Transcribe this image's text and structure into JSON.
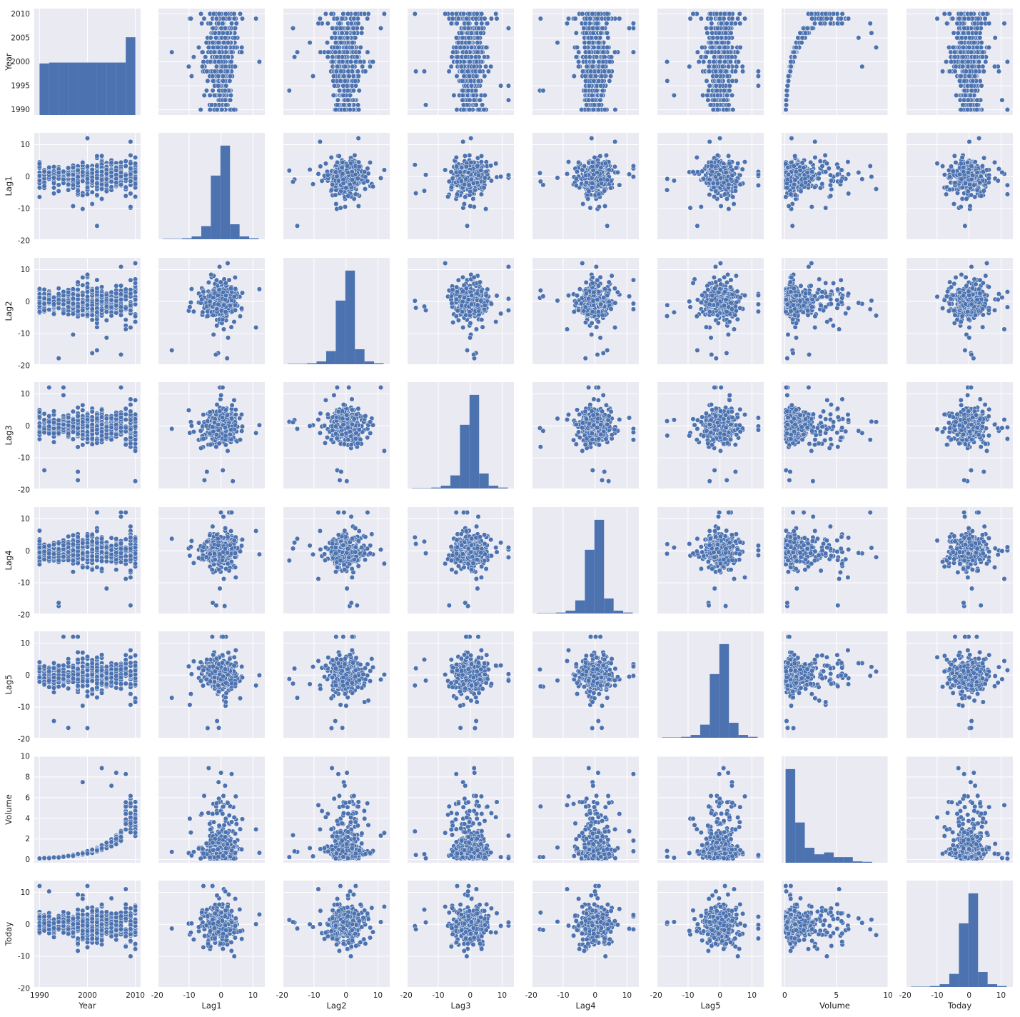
{
  "chart_data": {
    "type": "scatter",
    "subtype": "pairplot",
    "style": {
      "panel_background": "#EAEAF2",
      "grid_color": "#FFFFFF",
      "marker_color": "#4C72B0",
      "marker_edge": "#FFFFFF",
      "grid": true
    },
    "variables": [
      {
        "name": "Year",
        "label": "Year",
        "range": [
          1988.9,
          2011.1
        ],
        "ticks": [
          1990,
          1995,
          2000,
          2005,
          2010
        ],
        "x_ticks": [
          1990,
          2000,
          2010
        ],
        "kind": "year"
      },
      {
        "name": "Lag1",
        "label": "Lag1",
        "range": [
          -19.6,
          13.7
        ],
        "ticks": [
          -20,
          -10,
          0,
          10
        ],
        "x_ticks": [
          -20,
          -10,
          0,
          10
        ],
        "kind": "lag"
      },
      {
        "name": "Lag2",
        "label": "Lag2",
        "range": [
          -19.6,
          13.7
        ],
        "ticks": [
          -20,
          -10,
          0,
          10
        ],
        "x_ticks": [
          -20,
          -10,
          0,
          10
        ],
        "kind": "lag"
      },
      {
        "name": "Lag3",
        "label": "Lag3",
        "range": [
          -19.6,
          13.7
        ],
        "ticks": [
          -20,
          -10,
          0,
          10
        ],
        "x_ticks": [
          -20,
          -10,
          0,
          10
        ],
        "kind": "lag"
      },
      {
        "name": "Lag4",
        "label": "Lag4",
        "range": [
          -19.6,
          13.7
        ],
        "ticks": [
          -20,
          -10,
          0,
          10
        ],
        "x_ticks": [
          -20,
          -10,
          0,
          10
        ],
        "kind": "lag"
      },
      {
        "name": "Lag5",
        "label": "Lag5",
        "range": [
          -19.6,
          13.7
        ],
        "ticks": [
          -20,
          -10,
          0,
          10
        ],
        "x_ticks": [
          -20,
          -10,
          0,
          10
        ],
        "kind": "lag"
      },
      {
        "name": "Volume",
        "label": "Volume",
        "range": [
          -0.3,
          10.0
        ],
        "ticks": [
          0,
          2,
          4,
          6,
          8,
          10
        ],
        "x_ticks": [
          0,
          5,
          10
        ],
        "kind": "volume"
      },
      {
        "name": "Today",
        "label": "Today",
        "range": [
          -19.6,
          13.7
        ],
        "ticks": [
          -20,
          -10,
          0,
          10
        ],
        "x_ticks": [
          -20,
          -10,
          0,
          10
        ],
        "kind": "lag"
      }
    ],
    "histograms": {
      "Year": {
        "bins": [
          [
            1990.0,
            1992.0,
            0.55
          ],
          [
            1992.0,
            1994.0,
            0.56
          ],
          [
            1994.0,
            1996.0,
            0.56
          ],
          [
            1996.0,
            1998.0,
            0.56
          ],
          [
            1998.0,
            2000.0,
            0.56
          ],
          [
            2000.0,
            2002.0,
            0.56
          ],
          [
            2002.0,
            2004.0,
            0.56
          ],
          [
            2004.0,
            2006.0,
            0.56
          ],
          [
            2006.0,
            2008.0,
            0.56
          ],
          [
            2008.0,
            2010.0,
            0.83
          ]
        ]
      },
      "Lag1": {
        "bins": [
          [
            -18.2,
            -15.2,
            0.004
          ],
          [
            -15.2,
            -12.2,
            0.004
          ],
          [
            -12.2,
            -9.2,
            0.01
          ],
          [
            -9.2,
            -6.2,
            0.03
          ],
          [
            -6.2,
            -3.2,
            0.14
          ],
          [
            -3.2,
            -0.2,
            0.68
          ],
          [
            -0.2,
            2.8,
            1.0
          ],
          [
            2.8,
            5.8,
            0.16
          ],
          [
            5.8,
            8.8,
            0.03
          ],
          [
            8.8,
            11.8,
            0.01
          ]
        ]
      },
      "Lag2": {
        "bins": [
          [
            -18.2,
            -15.2,
            0.004
          ],
          [
            -15.2,
            -12.2,
            0.004
          ],
          [
            -12.2,
            -9.2,
            0.01
          ],
          [
            -9.2,
            -6.2,
            0.03
          ],
          [
            -6.2,
            -3.2,
            0.14
          ],
          [
            -3.2,
            -0.2,
            0.68
          ],
          [
            -0.2,
            2.8,
            1.0
          ],
          [
            2.8,
            5.8,
            0.16
          ],
          [
            5.8,
            8.8,
            0.03
          ],
          [
            8.8,
            11.8,
            0.01
          ]
        ]
      },
      "Lag3": {
        "bins": [
          [
            -18.2,
            -15.2,
            0.004
          ],
          [
            -15.2,
            -12.2,
            0.004
          ],
          [
            -12.2,
            -9.2,
            0.01
          ],
          [
            -9.2,
            -6.2,
            0.03
          ],
          [
            -6.2,
            -3.2,
            0.14
          ],
          [
            -3.2,
            -0.2,
            0.68
          ],
          [
            -0.2,
            2.8,
            1.0
          ],
          [
            2.8,
            5.8,
            0.16
          ],
          [
            5.8,
            8.8,
            0.03
          ],
          [
            8.8,
            11.8,
            0.01
          ]
        ]
      },
      "Lag4": {
        "bins": [
          [
            -18.2,
            -15.2,
            0.004
          ],
          [
            -15.2,
            -12.2,
            0.004
          ],
          [
            -12.2,
            -9.2,
            0.01
          ],
          [
            -9.2,
            -6.2,
            0.03
          ],
          [
            -6.2,
            -3.2,
            0.14
          ],
          [
            -3.2,
            -0.2,
            0.68
          ],
          [
            -0.2,
            2.8,
            1.0
          ],
          [
            2.8,
            5.8,
            0.16
          ],
          [
            5.8,
            8.8,
            0.03
          ],
          [
            8.8,
            11.8,
            0.01
          ]
        ]
      },
      "Lag5": {
        "bins": [
          [
            -18.2,
            -15.2,
            0.004
          ],
          [
            -15.2,
            -12.2,
            0.004
          ],
          [
            -12.2,
            -9.2,
            0.01
          ],
          [
            -9.2,
            -6.2,
            0.03
          ],
          [
            -6.2,
            -3.2,
            0.14
          ],
          [
            -3.2,
            -0.2,
            0.68
          ],
          [
            -0.2,
            2.8,
            1.0
          ],
          [
            2.8,
            5.8,
            0.16
          ],
          [
            5.8,
            8.8,
            0.03
          ],
          [
            8.8,
            11.8,
            0.01
          ]
        ]
      },
      "Volume": {
        "bins": [
          [
            0.09,
            1.02,
            1.0
          ],
          [
            1.02,
            1.95,
            0.43
          ],
          [
            1.95,
            2.88,
            0.16
          ],
          [
            2.88,
            3.81,
            0.09
          ],
          [
            3.81,
            4.74,
            0.11
          ],
          [
            4.74,
            5.67,
            0.06
          ],
          [
            5.67,
            6.6,
            0.06
          ],
          [
            6.6,
            7.53,
            0.015
          ],
          [
            7.53,
            8.46,
            0.01
          ]
        ]
      },
      "Today": {
        "bins": [
          [
            -18.2,
            -15.2,
            0.004
          ],
          [
            -15.2,
            -12.2,
            0.004
          ],
          [
            -12.2,
            -9.2,
            0.01
          ],
          [
            -9.2,
            -6.2,
            0.03
          ],
          [
            -6.2,
            -3.2,
            0.14
          ],
          [
            -3.2,
            -0.2,
            0.68
          ],
          [
            -0.2,
            2.8,
            1.0
          ],
          [
            2.8,
            5.8,
            0.16
          ],
          [
            5.8,
            8.8,
            0.03
          ],
          [
            8.8,
            11.8,
            0.01
          ]
        ]
      }
    }
  }
}
